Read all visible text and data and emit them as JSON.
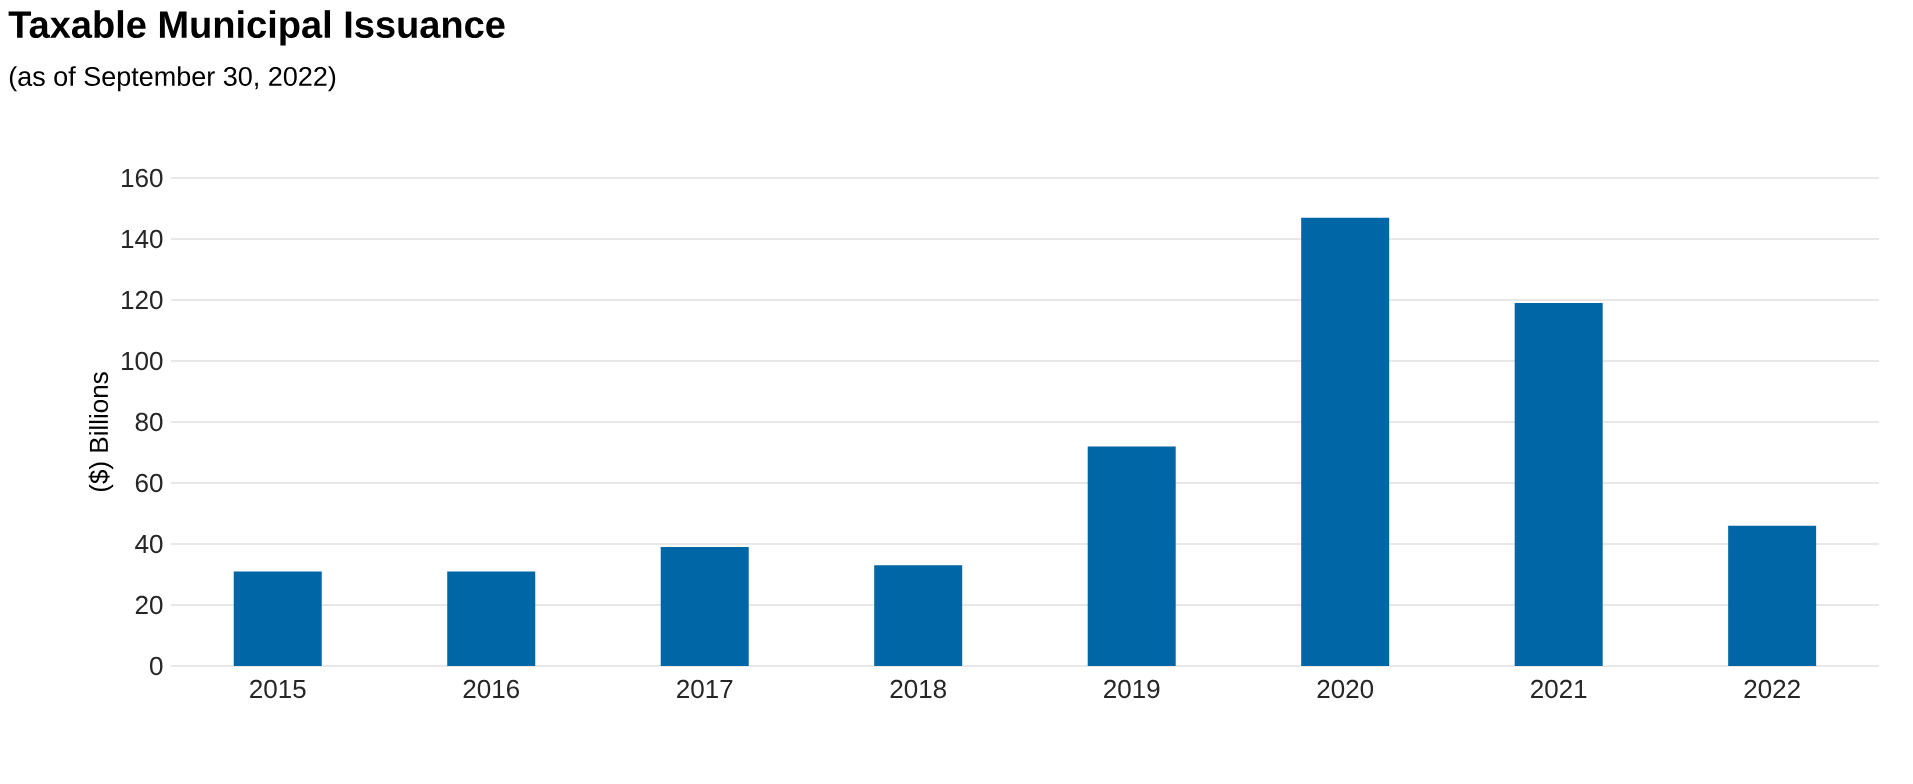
{
  "chart_data": {
    "type": "bar",
    "title": "Taxable Municipal Issuance",
    "subtitle": "(as of September 30, 2022)",
    "ylabel": "($) Billions",
    "categories": [
      "2015",
      "2016",
      "2017",
      "2018",
      "2019",
      "2020",
      "2021",
      "2022"
    ],
    "values": [
      31,
      31,
      39,
      33,
      72,
      147,
      119,
      46
    ],
    "color": "#0066a6",
    "ylim": [
      0,
      160
    ],
    "yticks": [
      0,
      20,
      40,
      60,
      80,
      100,
      120,
      140,
      160
    ],
    "grid": "y"
  }
}
